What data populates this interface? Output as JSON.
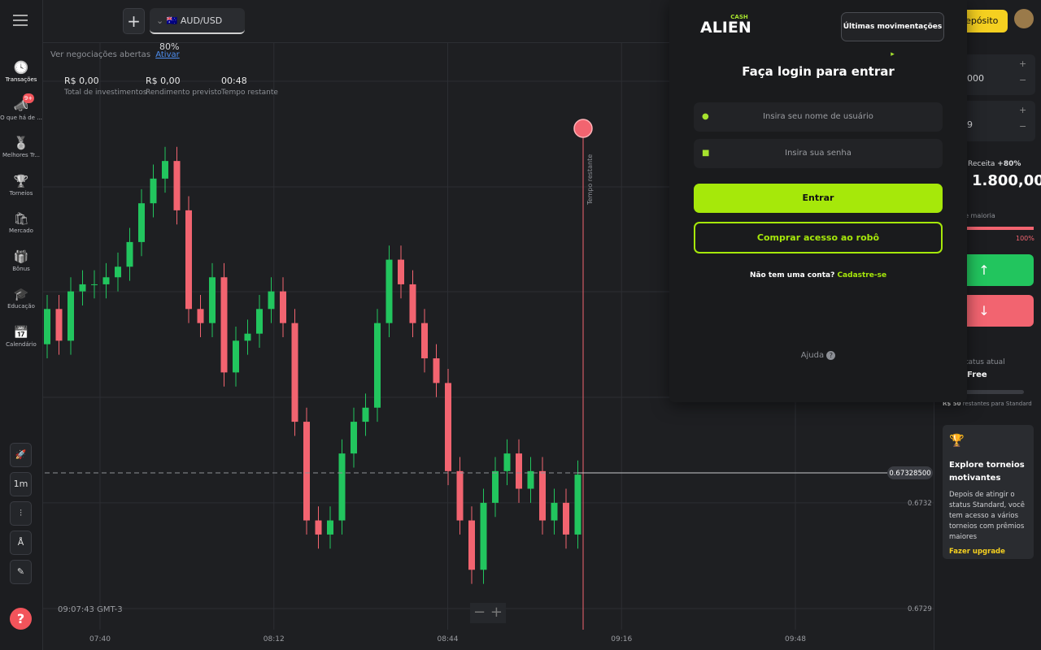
{
  "top_bar": {
    "asset": "AUD/USD",
    "payout": "80%",
    "deposit": "Depósito"
  },
  "sidebar": {
    "items": [
      "Transações",
      "O que há de ...",
      "Melhores Tr...",
      "Torneios",
      "Mercado",
      "Bônus",
      "Educação",
      "Calendário"
    ],
    "badge": "9+"
  },
  "tools": {
    "timeframe": "1m"
  },
  "open_trades": {
    "text": "Ver negociações abertas",
    "link": "Ativar"
  },
  "stats": [
    {
      "value": "R$ 0,00",
      "label": "Total de investimentos"
    },
    {
      "value": "R$ 0,00",
      "label": "Rendimento previsto"
    },
    {
      "value": "00:48",
      "label": "Tempo restante"
    }
  ],
  "clock": "09:07:43 GMT-3",
  "chart_data": {
    "type": "candlestick",
    "up_color": "#22c55e",
    "down_color": "#f26470",
    "candles": [
      [
        0.67365,
        0.67379,
        0.67361,
        0.67375
      ],
      [
        0.67375,
        0.67379,
        0.67362,
        0.67366
      ],
      [
        0.67366,
        0.67384,
        0.67362,
        0.6738
      ],
      [
        0.6738,
        0.67386,
        0.67376,
        0.67382
      ],
      [
        0.67382,
        0.67386,
        0.67378,
        0.67382
      ],
      [
        0.67382,
        0.67388,
        0.67378,
        0.67384
      ],
      [
        0.67384,
        0.67391,
        0.6738,
        0.67387
      ],
      [
        0.67387,
        0.67398,
        0.67383,
        0.67394
      ],
      [
        0.67394,
        0.67409,
        0.6739,
        0.67405
      ],
      [
        0.67405,
        0.67416,
        0.67401,
        0.67412
      ],
      [
        0.67412,
        0.67421,
        0.67408,
        0.67417
      ],
      [
        0.67417,
        0.67421,
        0.67399,
        0.67403
      ],
      [
        0.67403,
        0.67407,
        0.67371,
        0.67375
      ],
      [
        0.67375,
        0.67379,
        0.67367,
        0.67371
      ],
      [
        0.67371,
        0.67388,
        0.67367,
        0.67384
      ],
      [
        0.67384,
        0.67388,
        0.67353,
        0.67357
      ],
      [
        0.67357,
        0.6737,
        0.67353,
        0.67366
      ],
      [
        0.67366,
        0.67372,
        0.67362,
        0.67368
      ],
      [
        0.67368,
        0.67379,
        0.67364,
        0.67375
      ],
      [
        0.67375,
        0.67384,
        0.67371,
        0.6738
      ],
      [
        0.6738,
        0.67384,
        0.67367,
        0.67371
      ],
      [
        0.67371,
        0.67375,
        0.67339,
        0.67343
      ],
      [
        0.67343,
        0.67347,
        0.67311,
        0.67315
      ],
      [
        0.67315,
        0.67319,
        0.67307,
        0.67311
      ],
      [
        0.67311,
        0.67319,
        0.67307,
        0.67315
      ],
      [
        0.67315,
        0.67338,
        0.67311,
        0.67334
      ],
      [
        0.67334,
        0.67347,
        0.6733,
        0.67343
      ],
      [
        0.67343,
        0.67351,
        0.67339,
        0.67347
      ],
      [
        0.67347,
        0.67375,
        0.67343,
        0.67371
      ],
      [
        0.67371,
        0.67393,
        0.67367,
        0.67389
      ],
      [
        0.67389,
        0.67393,
        0.67378,
        0.67382
      ],
      [
        0.67382,
        0.67386,
        0.67367,
        0.67371
      ],
      [
        0.67371,
        0.67375,
        0.67357,
        0.67361
      ],
      [
        0.67361,
        0.67365,
        0.6735,
        0.67354
      ],
      [
        0.67354,
        0.67358,
        0.67325,
        0.67329
      ],
      [
        0.67329,
        0.67333,
        0.67311,
        0.67315
      ],
      [
        0.67315,
        0.67319,
        0.67297,
        0.67301
      ],
      [
        0.67301,
        0.67324,
        0.67297,
        0.6732
      ],
      [
        0.6732,
        0.67333,
        0.67316,
        0.67329
      ],
      [
        0.67329,
        0.67338,
        0.67325,
        0.67334
      ],
      [
        0.67334,
        0.67338,
        0.6732,
        0.67324
      ],
      [
        0.67324,
        0.67333,
        0.6732,
        0.67329
      ],
      [
        0.67329,
        0.67333,
        0.67311,
        0.67315
      ],
      [
        0.67315,
        0.67324,
        0.67311,
        0.6732
      ],
      [
        0.6732,
        0.67324,
        0.67307,
        0.67311
      ],
      [
        0.67311,
        0.67332,
        0.67307,
        0.67328
      ]
    ],
    "ylim": [
      0.67284,
      0.6745
    ],
    "yticks": [
      0.6732,
      0.6729
    ],
    "current_price": {
      "value": 0.673285,
      "label": "0.67328500"
    },
    "x_labels": [
      "07:40",
      "08:12",
      "08:44",
      "09:16",
      "09:48"
    ],
    "expiry_label": "Tempo restante"
  },
  "login": {
    "brand_top": "CASH",
    "brand": "ALIEN",
    "history_button": "Últimas movimentações",
    "title": "Faça login para entrar",
    "username_placeholder": "Insira seu nome de usuário",
    "password_placeholder": "Insira sua senha",
    "submit": "Entrar",
    "buy": "Comprar acesso ao robô",
    "no_account": "Não tem uma conta?",
    "signup": "Cadastre-se",
    "help": "Ajuda"
  },
  "trade_panel": {
    "amount": "000",
    "time": "9",
    "income_label": "Receita",
    "income_pct": "+80%",
    "income_value": "1.800,00",
    "majority_label": "de maioria",
    "majority_pct": "100%",
    "status_label": "tatus atual",
    "status": "Free",
    "remaining_amount": "R$ 50",
    "remaining_text": "restantes para Standard",
    "promo_title": "Explore torneios motivantes",
    "promo_text": "Depois de atingir o status Standard, você tem acesso a vários torneios com prêmios maiores",
    "promo_link": "Fazer upgrade"
  }
}
